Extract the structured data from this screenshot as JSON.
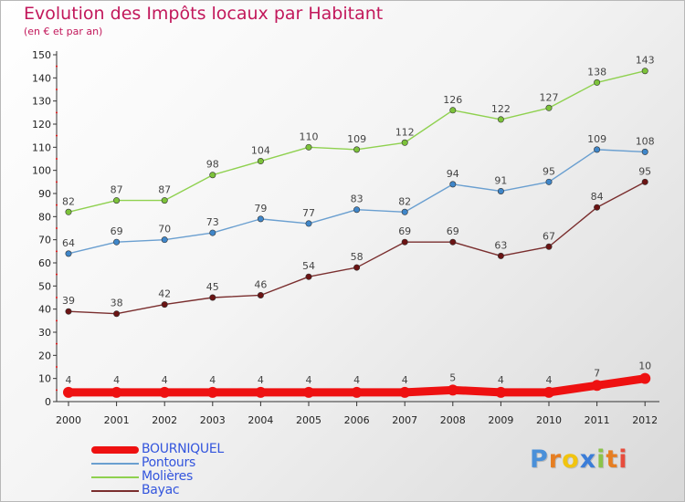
{
  "header": {
    "title": "Evolution des Impôts locaux par Habitant",
    "subtitle": "(en € et par an)"
  },
  "logo": {
    "letters": [
      "P",
      "r",
      "o",
      "x",
      "i",
      "t",
      "i"
    ],
    "colors": [
      "#4a90d9",
      "#e67e22",
      "#f1c40f",
      "#3b7dd8",
      "#8bc34a",
      "#e67e22",
      "#e74c3c"
    ]
  },
  "chart_data": {
    "type": "line",
    "title": "Evolution des Impôts locaux par Habitant",
    "subtitle": "(en € et par an)",
    "xlabel": "",
    "ylabel": "",
    "ylim": [
      0,
      150
    ],
    "yticks": [
      "0",
      "10",
      "20",
      "30",
      "40",
      "50",
      "60",
      "70",
      "80",
      "90",
      "100",
      "110",
      "120",
      "130",
      "140",
      "150"
    ],
    "grid": false,
    "legend_position": "bottom-left",
    "categories": [
      "2000",
      "2001",
      "2002",
      "2003",
      "2004",
      "2005",
      "2006",
      "2007",
      "2008",
      "2009",
      "2010",
      "2011",
      "2012"
    ],
    "series": [
      {
        "name": "Molières",
        "color": "#8fd14f",
        "markerColor": "#7cc23a",
        "values": [
          82,
          87,
          87,
          98,
          104,
          110,
          109,
          112,
          126,
          122,
          127,
          138,
          143
        ],
        "labels": [
          "82",
          "87",
          "87",
          "98",
          "104",
          "110",
          "109",
          "112",
          "126",
          "122",
          "127",
          "138",
          "143"
        ]
      },
      {
        "name": "Pontours",
        "color": "#6a9fd0",
        "markerColor": "#3f86c9",
        "values": [
          64,
          69,
          70,
          73,
          79,
          77,
          83,
          82,
          94,
          91,
          95,
          109,
          108
        ],
        "labels": [
          "64",
          "69",
          "70",
          "73",
          "79",
          "77",
          "83",
          "82",
          "94",
          "91",
          "95",
          "109",
          "108"
        ]
      },
      {
        "name": "Bayac",
        "color": "#7a2e2e",
        "markerColor": "#6b1414",
        "values": [
          39,
          38,
          42,
          45,
          46,
          54,
          58,
          69,
          69,
          63,
          67,
          84,
          95
        ],
        "labels": [
          "39",
          "38",
          "42",
          "45",
          "46",
          "54",
          "58",
          "69",
          "69",
          "63",
          "67",
          "84",
          "95"
        ]
      },
      {
        "name": "BOURNIQUEL",
        "color": "#ee1111",
        "markerColor": "#ee1111",
        "values": [
          4,
          4,
          4,
          4,
          4,
          4,
          4,
          4,
          5,
          4,
          4,
          7,
          10
        ],
        "labels": [
          "4",
          "4",
          "4",
          "4",
          "4",
          "4",
          "4",
          "4",
          "5",
          "4",
          "4",
          "7",
          "10"
        ]
      }
    ]
  },
  "legend": {
    "items": [
      {
        "label": "BOURNIQUEL",
        "color": "#ee1111",
        "thick": true
      },
      {
        "label": "Pontours",
        "color": "#6a9fd0",
        "thick": false
      },
      {
        "label": "Molières",
        "color": "#8fd14f",
        "thick": false
      },
      {
        "label": "Bayac",
        "color": "#7a2e2e",
        "thick": false
      }
    ]
  }
}
